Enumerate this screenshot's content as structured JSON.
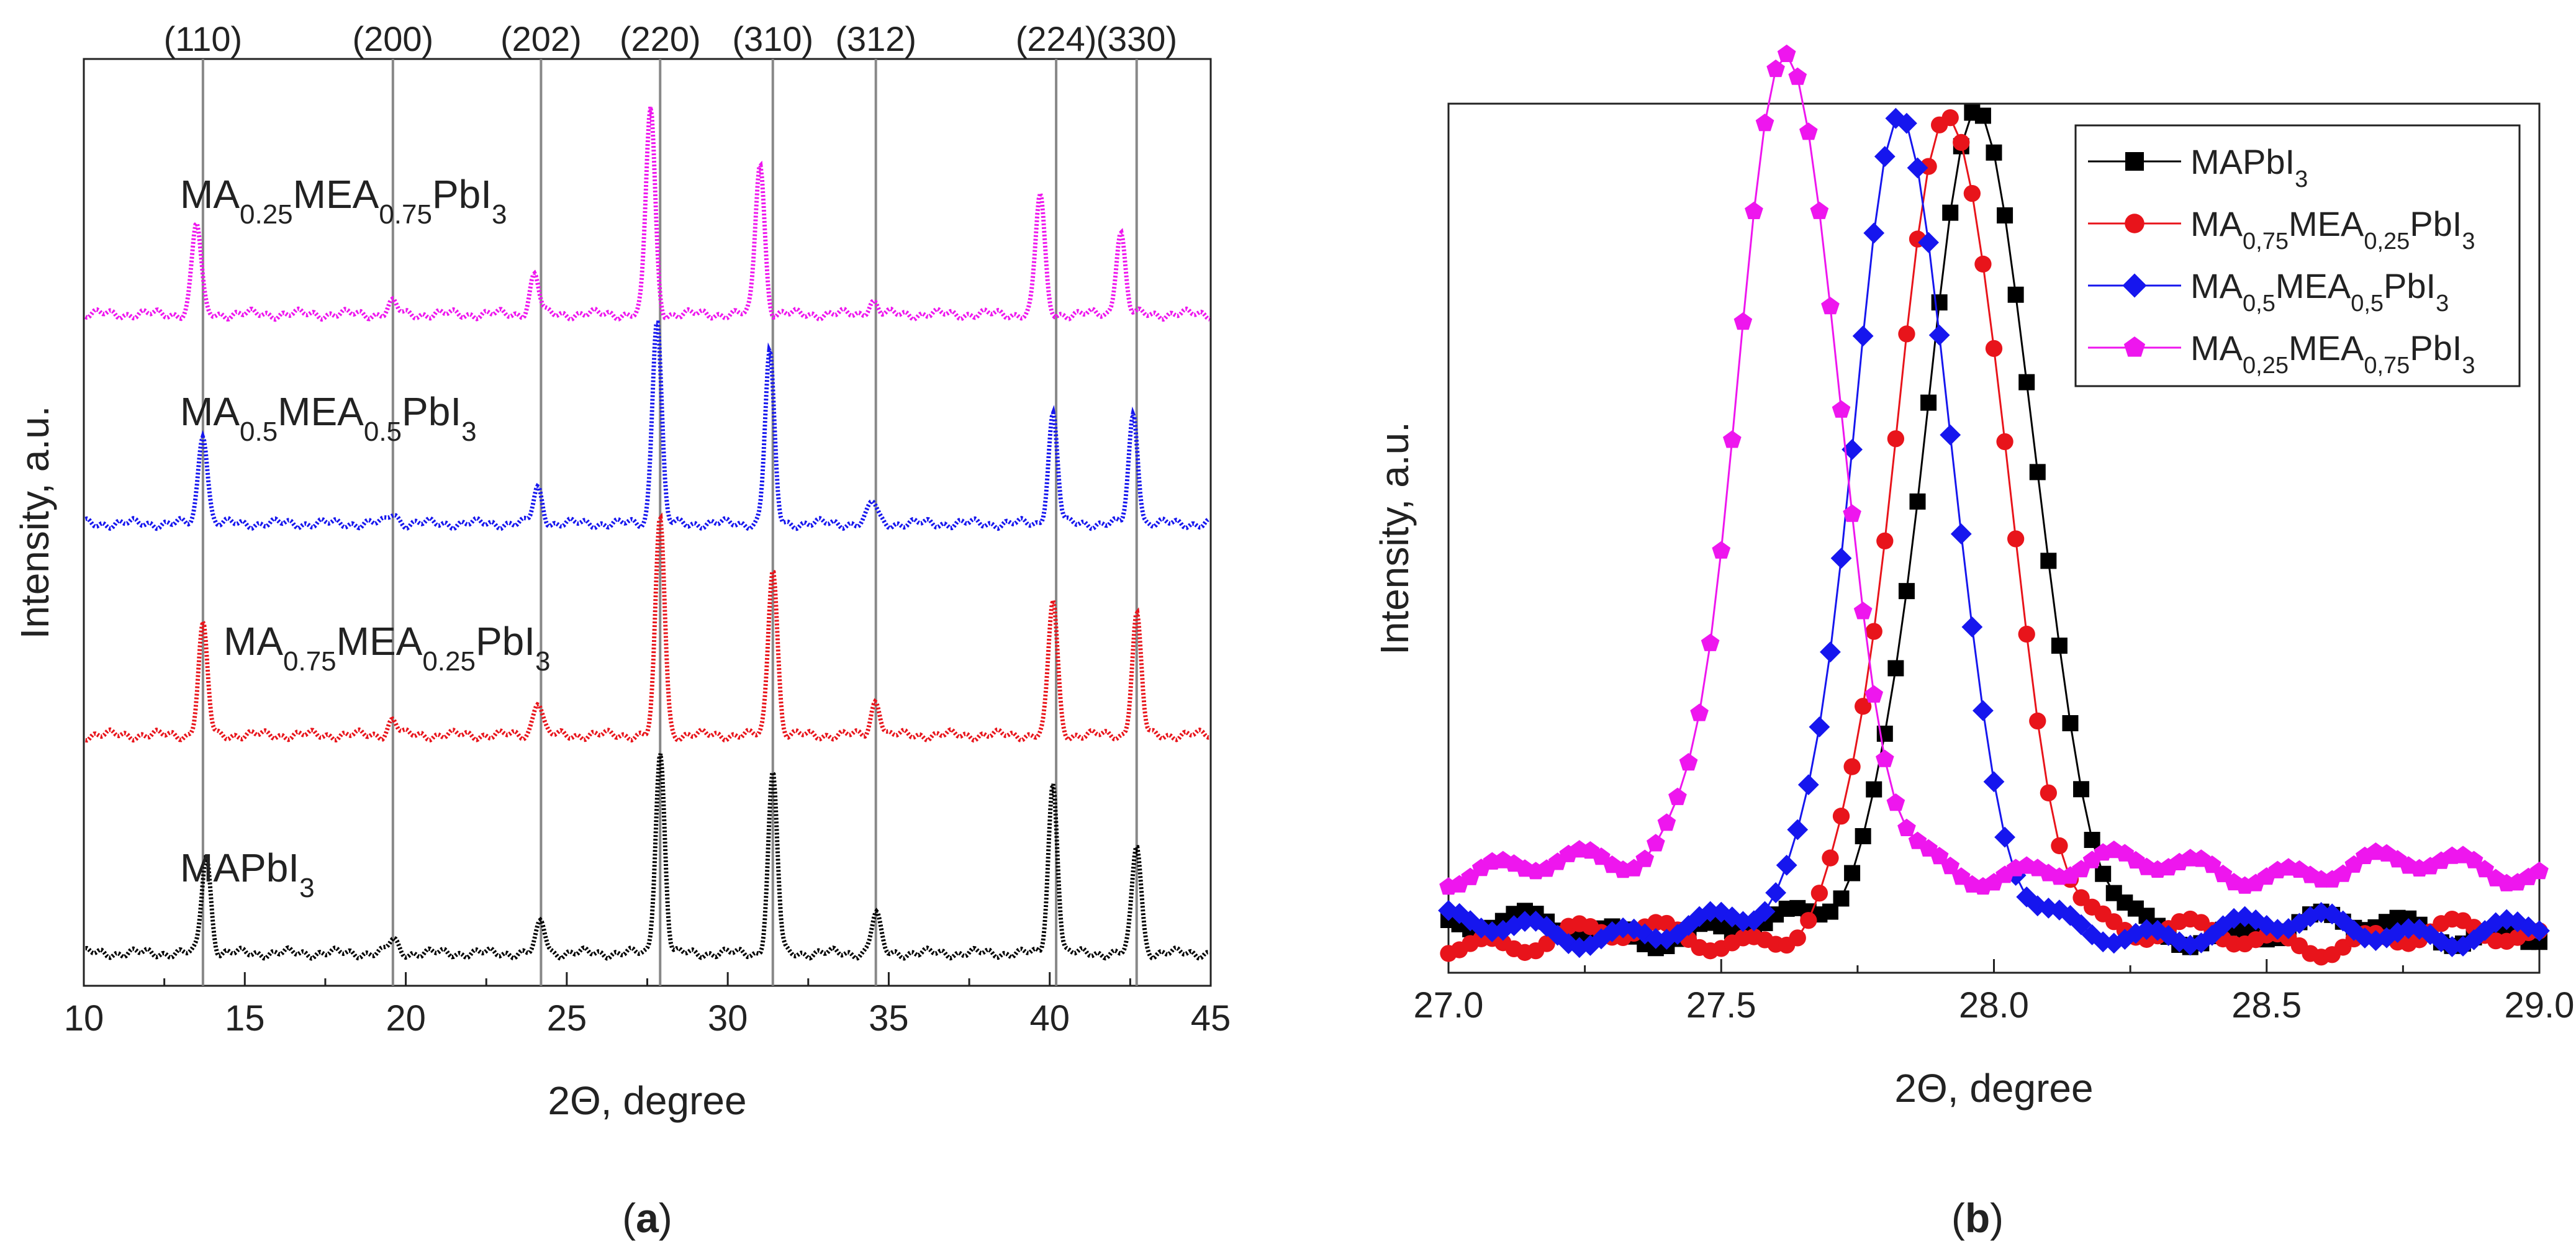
{
  "chart_data": [
    {
      "id": "a",
      "type": "line",
      "panel_label": "a",
      "xlabel": "2Θ, degree",
      "ylabel": "Intensity, a.u.",
      "xlim": [
        10,
        45
      ],
      "ylim": [
        0,
        4.25
      ],
      "xticks": [
        "10",
        "15",
        "20",
        "25",
        "30",
        "35",
        "40",
        "45"
      ],
      "reflections": [
        {
          "label": "(110)",
          "x": 13.7
        },
        {
          "label": "(200)",
          "x": 19.6
        },
        {
          "label": "(202)",
          "x": 24.2
        },
        {
          "label": "(220)",
          "x": 27.9
        },
        {
          "label": "(310)",
          "x": 31.4
        },
        {
          "label": "(312)",
          "x": 34.6
        },
        {
          "label": "(224)",
          "x": 40.2
        },
        {
          "label": "(330)",
          "x": 42.7
        }
      ],
      "series": [
        {
          "name": "MAPbI3",
          "label": {
            "base": "MAPbI",
            "sub1": "",
            "mid": "",
            "sub2": "",
            "tail": "",
            "sub3": "3"
          },
          "color": "#000000",
          "offset": 0.15,
          "peaks": [
            [
              13.8,
              0.45
            ],
            [
              19.6,
              0.06
            ],
            [
              24.2,
              0.14
            ],
            [
              27.9,
              0.92
            ],
            [
              31.4,
              0.82
            ],
            [
              34.6,
              0.18
            ],
            [
              40.1,
              0.78
            ],
            [
              42.7,
              0.5
            ]
          ]
        },
        {
          "name": "MA0.75MEA0.25PbI3",
          "label": {
            "base": "MA",
            "sub1": "0.75",
            "mid": "MEA",
            "sub2": "0.25",
            "tail": "PbI",
            "sub3": "3"
          },
          "color": "#e8141b",
          "offset": 1.15,
          "peaks": [
            [
              13.7,
              0.5
            ],
            [
              19.6,
              0.07
            ],
            [
              24.1,
              0.16
            ],
            [
              27.9,
              1.0
            ],
            [
              31.4,
              0.78
            ],
            [
              34.6,
              0.16
            ],
            [
              40.1,
              0.62
            ],
            [
              42.7,
              0.55
            ]
          ]
        },
        {
          "name": "MA0.5MEA0.5PbI3",
          "label": {
            "base": "MA",
            "sub1": "0.5",
            "mid": "MEA",
            "sub2": "0.5",
            "tail": "PbI",
            "sub3": "3"
          },
          "color": "#1616ee",
          "offset": 2.12,
          "peaks": [
            [
              13.7,
              0.42
            ],
            [
              19.6,
              0.05
            ],
            [
              24.1,
              0.16
            ],
            [
              27.8,
              0.95
            ],
            [
              31.3,
              0.78
            ],
            [
              34.5,
              0.1
            ],
            [
              40.1,
              0.5
            ],
            [
              42.6,
              0.5
            ]
          ]
        },
        {
          "name": "MA0.25MEA0.75PbI3",
          "label": {
            "base": "MA",
            "sub1": "0.25",
            "mid": "MEA",
            "sub2": "0.75",
            "tail": "PbI",
            "sub3": "3"
          },
          "color": "#ee16ee",
          "offset": 3.08,
          "peaks": [
            [
              13.5,
              0.42
            ],
            [
              19.6,
              0.05
            ],
            [
              24.0,
              0.18
            ],
            [
              27.6,
              0.95
            ],
            [
              31.0,
              0.7
            ],
            [
              34.5,
              0.06
            ],
            [
              39.7,
              0.55
            ],
            [
              42.2,
              0.38
            ]
          ]
        }
      ]
    },
    {
      "id": "b",
      "type": "line",
      "panel_label": "b",
      "xlabel": "2Θ, degree",
      "ylabel": "Intensity, a.u.",
      "xlim": [
        27.0,
        29.0
      ],
      "ylim": [
        0,
        1.0
      ],
      "xticks": [
        "27.0",
        "27.5",
        "28.0",
        "28.5",
        "29.0"
      ],
      "legend": "top-right",
      "series": [
        {
          "name": "MAPbI3",
          "label": {
            "base": "MAPbI",
            "sub1": "",
            "mid": "",
            "sub2": "",
            "tail": "",
            "sub3": "3"
          },
          "color": "#000000",
          "marker": "square",
          "center": 27.97,
          "width": 0.1,
          "height": 0.94,
          "base": 0.05
        },
        {
          "name": "MA0,75MEA0,25PbI3",
          "label": {
            "base": "MA",
            "sub1": "0,75",
            "mid": "MEA",
            "sub2": "0,25",
            "tail": "PbI",
            "sub3": "3"
          },
          "color": "#e8141b",
          "marker": "circle",
          "center": 27.92,
          "width": 0.1,
          "height": 0.94,
          "base": 0.04
        },
        {
          "name": "MA0,5MEA0,5PbI3",
          "label": {
            "base": "MA",
            "sub1": "0,5",
            "mid": "MEA",
            "sub2": "0,5",
            "tail": "PbI",
            "sub3": "3"
          },
          "color": "#1616ee",
          "marker": "diamond",
          "center": 27.83,
          "width": 0.09,
          "height": 0.94,
          "base": 0.05
        },
        {
          "name": "MA0,25MEA0,75PbI3",
          "label": {
            "base": "MA",
            "sub1": "0,25",
            "mid": "MEA",
            "sub2": "0,75",
            "tail": "PbI",
            "sub3": "3"
          },
          "color": "#ee16ee",
          "marker": "pentagon",
          "center": 27.62,
          "width": 0.09,
          "height": 0.94,
          "base": 0.12
        }
      ]
    }
  ]
}
